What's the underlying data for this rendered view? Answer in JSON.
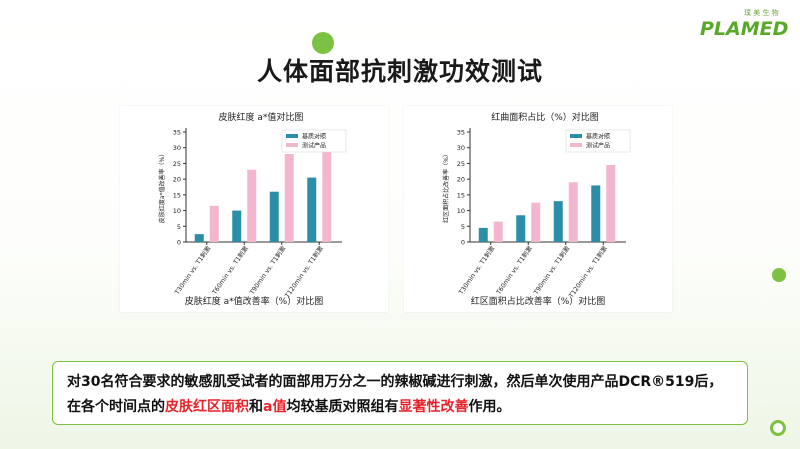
{
  "page": {
    "title": "人体面部抗刺激功效测试",
    "logo": {
      "sub": "璞 美 生 物",
      "main": "PLAMED"
    }
  },
  "description": {
    "part1": "对30名符合要求的敏感肌受试者的面部用万分之一的辣椒碱进行刺激，然后单次使用产品DCR®519后，在各个时间点的",
    "hl1": "皮肤红区面积",
    "part2": "和",
    "hl2": "a值",
    "part3": "均较基质对照组有",
    "hl3": "显著性改善",
    "part4": "作用。"
  },
  "colors": {
    "accent": "#7cc242",
    "base": "#2a8ea8",
    "product": "#f2b6cf",
    "highlight": "#e8232a"
  },
  "chart_data": [
    {
      "type": "bar",
      "title": "皮肤红度 a*值对比图",
      "caption": "皮肤红度 a*值改善率（%）对比图",
      "ylabel": "皮肤红度a*值改善率（%）",
      "ylim": [
        0,
        35
      ],
      "yticks": [
        "0",
        "5",
        "10",
        "15",
        "20",
        "25",
        "30",
        "35"
      ],
      "categories": [
        "T30min vs. T1刺激",
        "T60min vs. T1刺激",
        "T90min vs. T1刺激",
        "T120min vs. T1刺激"
      ],
      "series": [
        {
          "name": "基质对照",
          "color": "#2a8ea8",
          "values": [
            2.5,
            10,
            16,
            20.5
          ]
        },
        {
          "name": "测试产品",
          "color": "#f2b6cf",
          "values": [
            11.5,
            23,
            28,
            32.5
          ]
        }
      ],
      "legend": "top-right"
    },
    {
      "type": "bar",
      "title": "红曲面积占比（%）对比图",
      "caption": "红区面积占比改善率（%）对比图",
      "ylabel": "红区面积占比改善率（%）",
      "ylim": [
        0,
        35
      ],
      "yticks": [
        "0",
        "5",
        "10",
        "15",
        "20",
        "25",
        "30",
        "35"
      ],
      "categories": [
        "T30min vs. T1刺激",
        "T60min vs. T1刺激",
        "T90min vs. T1刺激",
        "T120min vs. T1刺激"
      ],
      "series": [
        {
          "name": "基质对照",
          "color": "#2a8ea8",
          "values": [
            4.5,
            8.5,
            13,
            18
          ]
        },
        {
          "name": "测试产品",
          "color": "#f2b6cf",
          "values": [
            6.5,
            12.5,
            19,
            24.5
          ]
        }
      ],
      "legend": "top-right"
    }
  ]
}
